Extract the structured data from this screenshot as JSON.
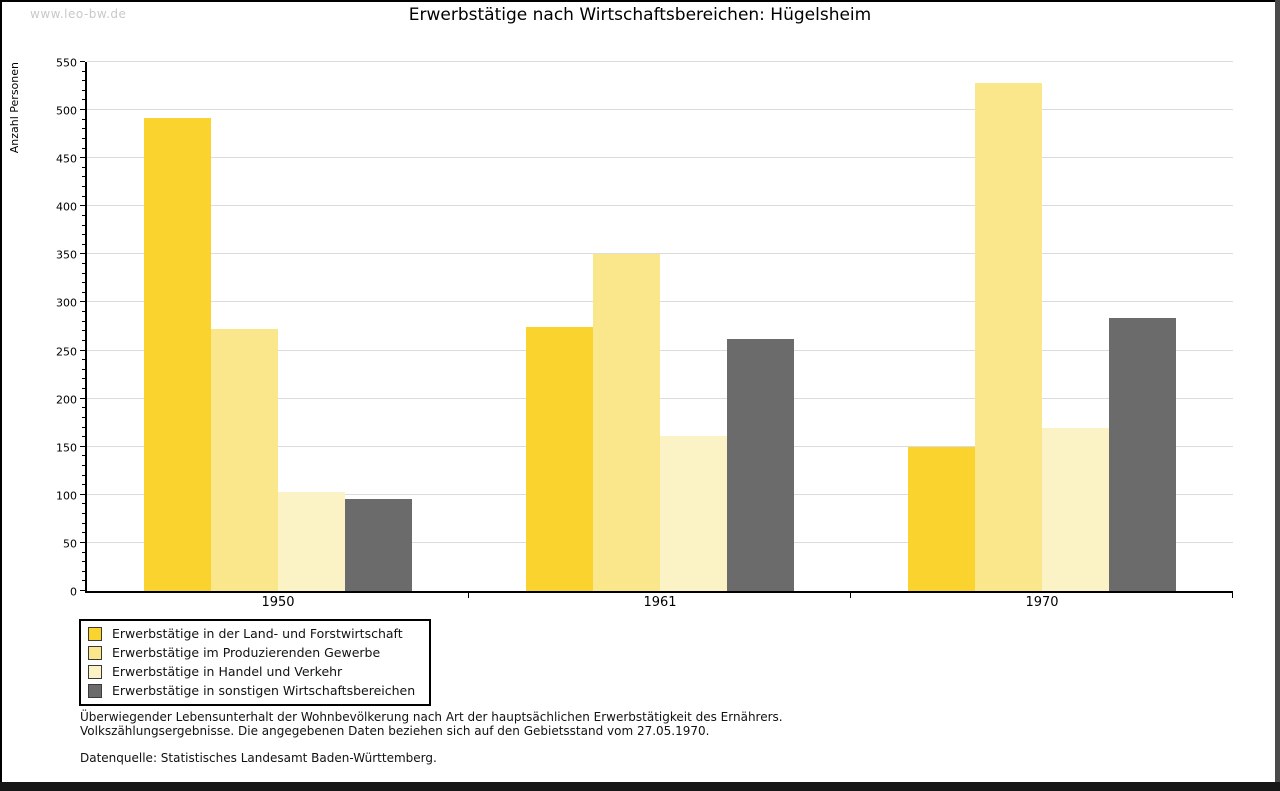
{
  "header": {
    "watermark": "www.leo-bw.de",
    "title": "Erwerbstätige nach Wirtschaftsbereichen: Hügelsheim"
  },
  "chart_data": {
    "type": "bar",
    "title": "Erwerbstätige nach Wirtschaftsbereichen: Hügelsheim",
    "xlabel": "",
    "ylabel": "Anzahl Personen",
    "categories": [
      "1950",
      "1961",
      "1970"
    ],
    "series": [
      {
        "name": "Erwerbstätige in der Land- und Forstwirtschaft",
        "color": "#fbd32e",
        "values": [
          492,
          274,
          150
        ]
      },
      {
        "name": "Erwerbstätige im Produzierenden Gewerbe",
        "color": "#fae78c",
        "values": [
          272,
          350,
          528
        ]
      },
      {
        "name": "Erwerbstätige in Handel und Verkehr",
        "color": "#fbf3c6",
        "values": [
          103,
          161,
          170
        ]
      },
      {
        "name": "Erwerbstätige in sonstigen Wirtschaftsbereichen",
        "color": "#6b6b6b",
        "values": [
          96,
          262,
          284
        ]
      }
    ],
    "ylim": [
      0,
      550
    ],
    "ytick_step": 50,
    "y_minor_step": 10,
    "grid": true,
    "legend_position": "bottom-left"
  },
  "footer": {
    "note_line1": "Überwiegender Lebensunterhalt der Wohnbevölkerung nach Art der hauptsächlichen Erwerbstätigkeit des Ernährers.",
    "note_line2": "Volkszählungsergebnisse. Die angegebenen Daten beziehen sich auf den Gebietsstand vom 27.05.1970.",
    "source": "Datenquelle: Statistisches Landesamt Baden-Württemberg."
  }
}
